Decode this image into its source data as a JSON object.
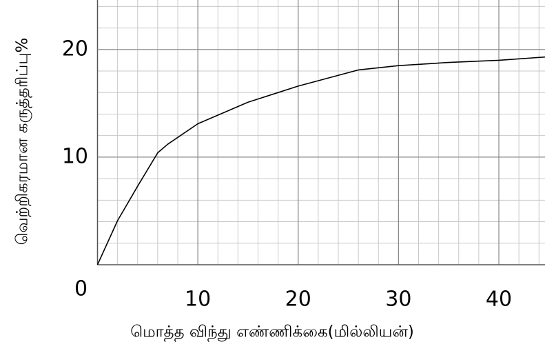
{
  "chart_data": {
    "type": "line",
    "x_label": "மொத்த விந்து எண்ணிக்கை(மில்லியன்)",
    "y_label": "வெற்றிகரமான கருத்தரிப்பு%",
    "x": [
      0,
      2,
      4,
      6,
      7,
      10,
      15,
      20,
      26,
      30,
      35,
      40,
      44.6
    ],
    "series": [
      {
        "color": "#000000",
        "values": [
          0,
          4.1,
          7.3,
          10.4,
          11.2,
          13.1,
          15.1,
          16.6,
          18.1,
          18.5,
          18.8,
          19.0,
          19.3
        ]
      }
    ],
    "xlim": [
      0,
      44.6
    ],
    "ylim": [
      0,
      24.6
    ],
    "xticks": [
      0,
      10,
      20,
      30,
      40
    ],
    "yticks": [
      10,
      20
    ],
    "grid": true
  }
}
